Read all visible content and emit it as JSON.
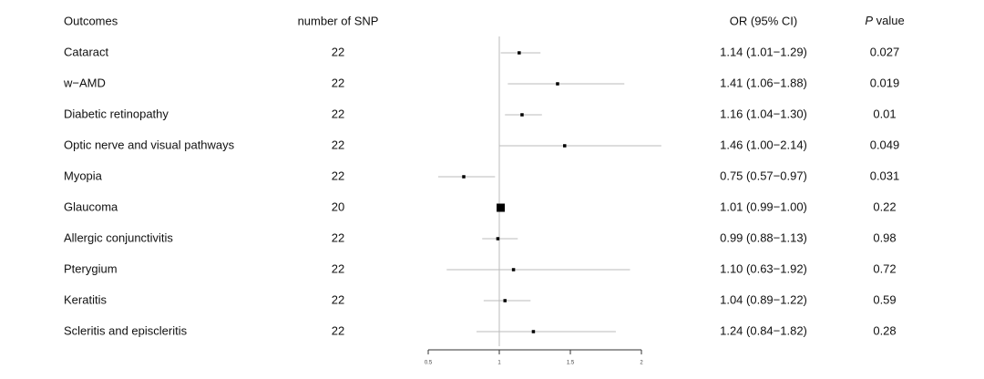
{
  "chart_data": {
    "type": "forest",
    "headers": {
      "outcome": "Outcomes",
      "n_snp": "number of SNP",
      "or_ci": "OR (95% CI)",
      "p": "P value"
    },
    "categories": [
      "Cataract",
      "w−AMD",
      "Diabetic retinopathy",
      "Optic nerve and visual pathways",
      "Myopia",
      "Glaucoma",
      "Allergic conjunctivitis",
      "Pterygium",
      "Keratitis",
      "Scleritis and episcleritis"
    ],
    "n_snp": [
      22,
      22,
      22,
      22,
      22,
      20,
      22,
      22,
      22,
      22
    ],
    "values": [
      1.14,
      1.41,
      1.16,
      1.46,
      0.75,
      1.01,
      0.99,
      1.1,
      1.04,
      1.24
    ],
    "lower": [
      1.01,
      1.06,
      1.04,
      1.0,
      0.57,
      0.99,
      0.88,
      0.63,
      0.89,
      0.84
    ],
    "upper": [
      1.29,
      1.88,
      1.3,
      2.14,
      0.97,
      1.0,
      1.13,
      1.92,
      1.22,
      1.82
    ],
    "value_labels": [
      "1.14 (1.01−1.29)",
      "1.41 (1.06−1.88)",
      "1.16 (1.04−1.30)",
      "1.46 (1.00−2.14)",
      "0.75 (0.57−0.97)",
      "1.01 (0.99−1.00)",
      "0.99 (0.88−1.13)",
      "1.10 (0.63−1.92)",
      "1.04 (0.89−1.22)",
      "1.24 (0.84−1.82)"
    ],
    "p_values": [
      0.027,
      0.019,
      0.01,
      0.049,
      0.031,
      0.22,
      0.98,
      0.72,
      0.59,
      0.28
    ],
    "xlim": [
      0.5,
      2
    ],
    "xticks": [
      0.5,
      1,
      1.5,
      2
    ],
    "reference_line": 1,
    "ci_color": "#bbbbbb",
    "point_color": "#000000"
  }
}
